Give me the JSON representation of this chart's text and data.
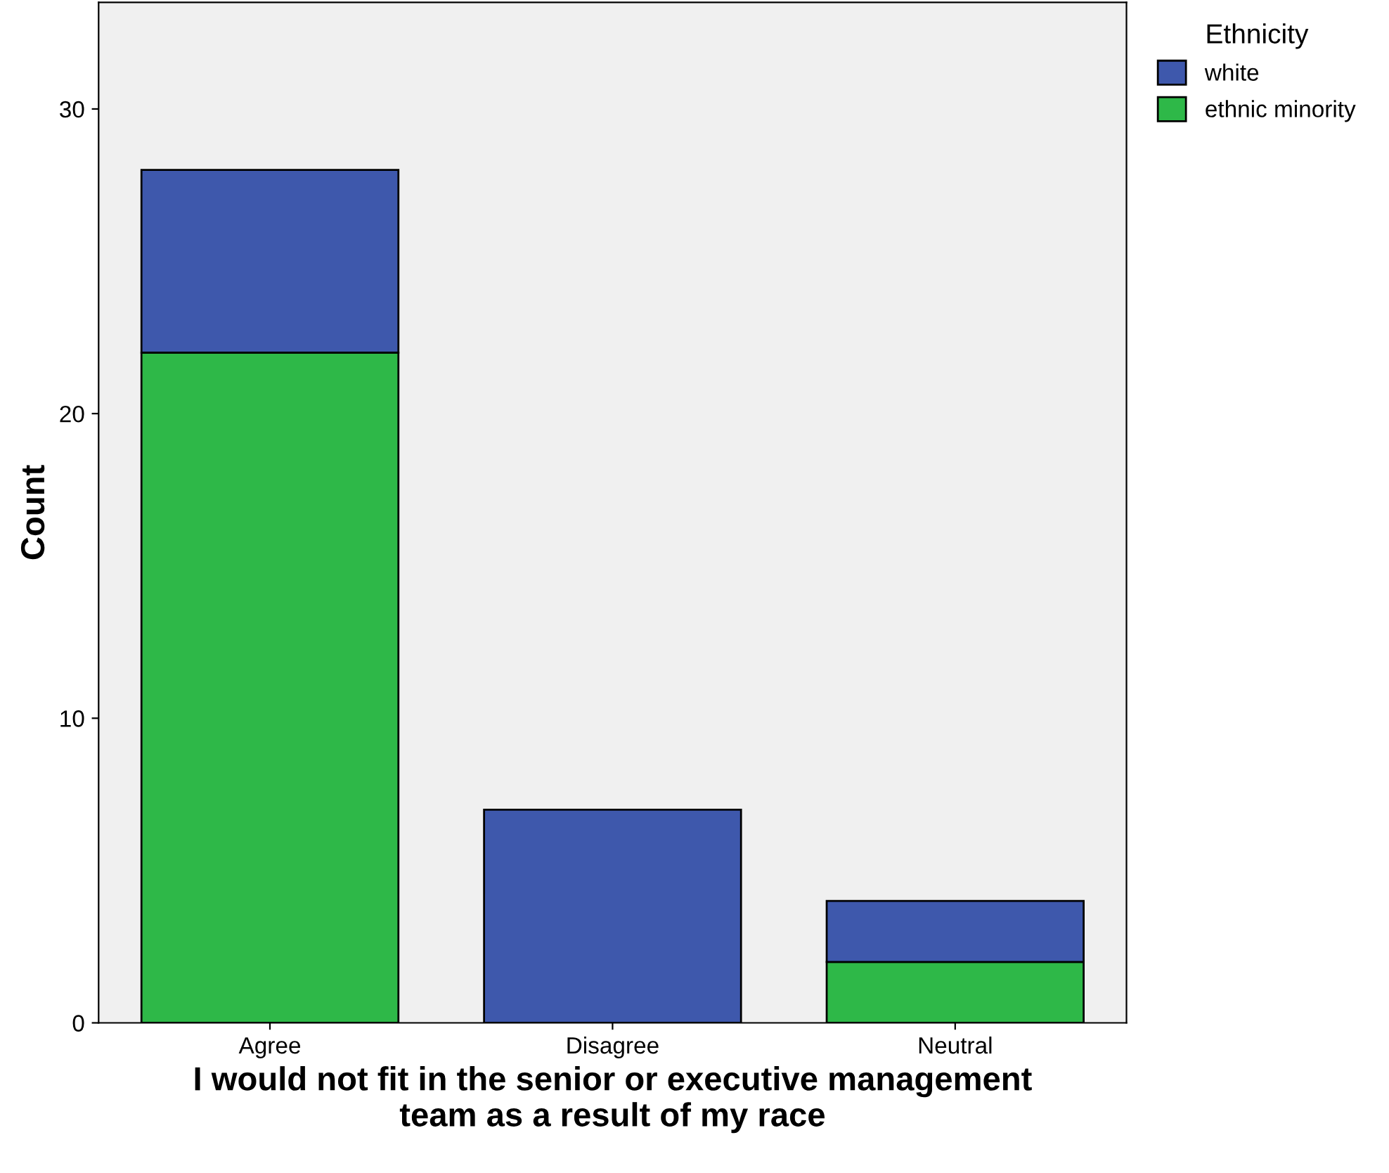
{
  "chart_data": {
    "type": "bar",
    "stacked": true,
    "xlabel": "I would not fit in the senior or executive management\nteam as a result of my race",
    "ylabel": "Count",
    "legend_title": "Ethnicity",
    "legend": "top right",
    "categories": [
      "Agree",
      "Disagree",
      "Neutral"
    ],
    "series": [
      {
        "name": "ethnic minority",
        "color": "#2eb848",
        "values": [
          22,
          0,
          2
        ]
      },
      {
        "name": "white",
        "color": "#3e58ac",
        "values": [
          6,
          7,
          2
        ]
      }
    ],
    "ylim": [
      0,
      33.5
    ],
    "yticks": [
      0,
      10,
      20,
      30
    ],
    "grid": false
  }
}
